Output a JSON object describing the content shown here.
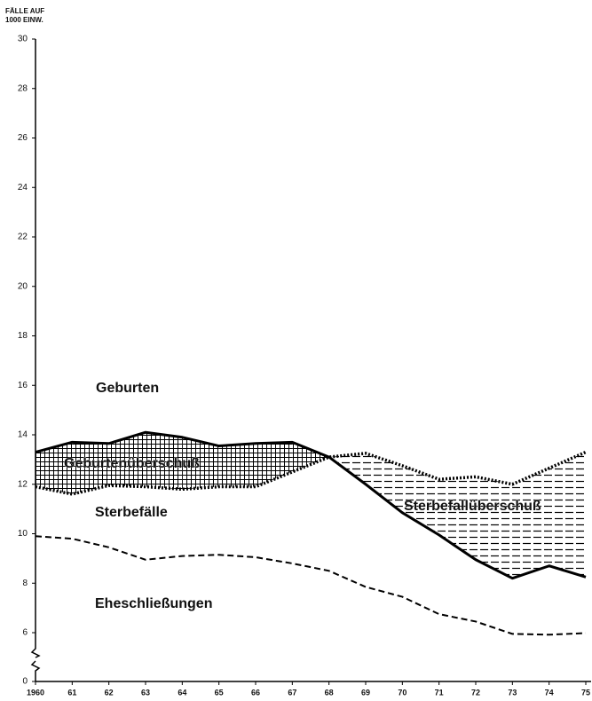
{
  "chart_data": {
    "type": "line",
    "ylabel": [
      "FÄLLE AUF",
      "1000 EINW."
    ],
    "categories": [
      "1960",
      "61",
      "62",
      "63",
      "64",
      "65",
      "66",
      "67",
      "68",
      "69",
      "70",
      "71",
      "72",
      "73",
      "74",
      "75"
    ],
    "series": [
      {
        "name": "Geburten",
        "color": "#000000",
        "style": "solid",
        "values": [
          13.3,
          13.7,
          13.65,
          14.1,
          13.9,
          13.55,
          13.65,
          13.7,
          13.1,
          12.0,
          10.85,
          9.95,
          8.95,
          8.2,
          8.7,
          8.25
        ]
      },
      {
        "name": "Sterbefälle",
        "color": "#000000",
        "style": "dotted",
        "values": [
          11.9,
          11.6,
          11.95,
          11.9,
          11.8,
          11.9,
          11.9,
          12.5,
          13.1,
          13.25,
          12.75,
          12.2,
          12.3,
          12.0,
          12.65,
          13.3
        ]
      },
      {
        "name": "Eheschließungen",
        "color": "#000000",
        "style": "dashed",
        "values": [
          9.9,
          9.8,
          9.45,
          8.95,
          9.1,
          9.15,
          9.05,
          8.8,
          8.5,
          7.85,
          7.45,
          6.75,
          6.45,
          5.85,
          5.75,
          5.95
        ]
      }
    ],
    "annotations": [
      "Geburtenüberschuß",
      "Sterbefallüberschuß"
    ],
    "ylim": [
      0,
      30
    ],
    "yticks": [
      0,
      6,
      8,
      10,
      12,
      14,
      16,
      18,
      20,
      22,
      24,
      26,
      28,
      30
    ],
    "y_break": true
  }
}
